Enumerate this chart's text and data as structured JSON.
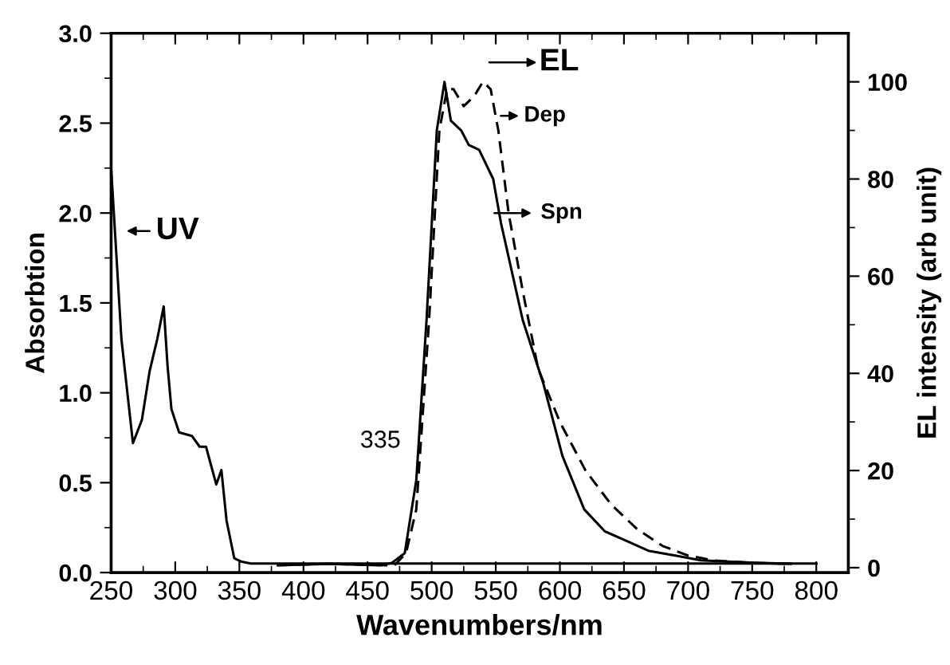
{
  "chart_data": {
    "type": "line",
    "xlabel": "Wavenumbers/nm",
    "ylabel": "Absorbtion",
    "y2label": "EL intensity (arb unit)",
    "xlim": [
      250,
      825
    ],
    "xticks": [
      250,
      300,
      350,
      400,
      450,
      500,
      550,
      600,
      650,
      700,
      750,
      800
    ],
    "ylim": [
      0,
      3
    ],
    "yticks": [
      {
        "value": 0,
        "label": "0.0"
      },
      0.5,
      {
        "value": 1,
        "label": "1.0"
      },
      1.5,
      {
        "value": 2,
        "label": "2.0"
      },
      2.5,
      {
        "value": 3,
        "label": "3.0"
      }
    ],
    "y2lim": [
      -1,
      110
    ],
    "y2ticks": [
      0,
      20,
      40,
      60,
      80,
      100
    ],
    "grid": false,
    "legend": false,
    "marker": "none",
    "series": [
      {
        "color": "#000000",
        "line_style": "solid",
        "axis": "y",
        "x": [
          250,
          258,
          267,
          274,
          280,
          286,
          291,
          294,
          297,
          303,
          313,
          319,
          324,
          332,
          336,
          340,
          346,
          352,
          359,
          400,
          600,
          800
        ],
        "values": [
          2.25,
          1.3,
          0.72,
          0.85,
          1.12,
          1.3,
          1.48,
          1.15,
          0.91,
          0.78,
          0.76,
          0.7,
          0.7,
          0.49,
          0.57,
          0.29,
          0.08,
          0.06,
          0.05,
          0.05,
          0.05,
          0.05
        ]
      },
      {
        "color": "#000000",
        "line_style": "solid",
        "axis": "y2",
        "x": [
          380,
          420,
          460,
          469,
          479,
          488,
          496,
          504,
          510,
          515,
          523,
          529,
          537,
          548,
          554,
          571,
          587,
          602,
          619,
          635,
          652,
          669,
          690,
          710,
          752,
          780
        ],
        "values": [
          0.5,
          0.8,
          0.5,
          1,
          3,
          18,
          51,
          90,
          100,
          92,
          90,
          87,
          86,
          80,
          71,
          51,
          38,
          23,
          12,
          7.5,
          5.5,
          3.5,
          2.5,
          1.5,
          1,
          0.8
        ]
      },
      {
        "color": "#000000",
        "line_style": "dashed",
        "axis": "y2",
        "x": [
          380,
          420,
          465,
          471,
          480,
          488,
          498,
          506,
          512,
          517,
          525,
          533,
          540,
          546,
          552,
          560,
          571,
          583,
          600,
          620,
          640,
          660,
          680,
          700,
          720,
          750,
          780
        ],
        "values": [
          0.5,
          0.8,
          0.5,
          0.5,
          3,
          12,
          51,
          90,
          98.5,
          98.5,
          95,
          97,
          100,
          98.5,
          90,
          73,
          57,
          41,
          30,
          20,
          13,
          8,
          4.5,
          2.5,
          1.5,
          1,
          0.8
        ]
      }
    ],
    "annotations": [
      "UV",
      "Spn",
      "Dep",
      "EL",
      "335"
    ]
  }
}
